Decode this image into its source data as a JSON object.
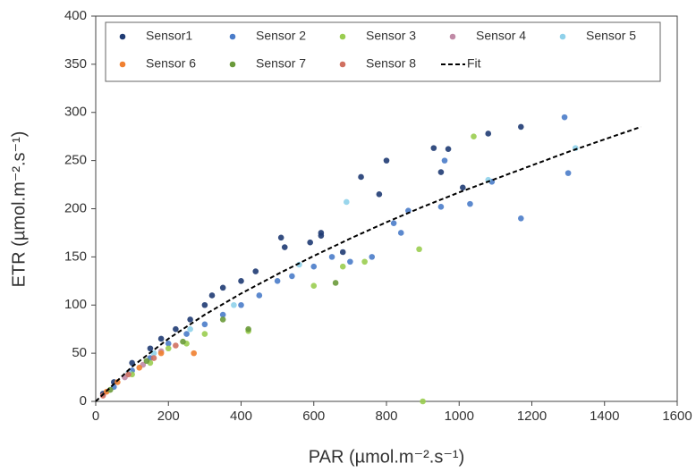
{
  "chart_data": {
    "type": "scatter",
    "x_label": "PAR (µmol.m⁻².s⁻¹)",
    "y_label": "ETR (µmol.m⁻².s⁻¹)",
    "xlim": [
      0,
      1600
    ],
    "xticks": [
      0,
      200,
      400,
      600,
      800,
      1000,
      1200,
      1400,
      1600
    ],
    "ylim": [
      0,
      400
    ],
    "yticks": [
      0,
      50,
      100,
      150,
      200,
      250,
      300,
      350,
      400
    ],
    "grid": false,
    "legend": "top",
    "series": [
      {
        "name": "Sensor1",
        "type": "scatter",
        "color": "#1f3b73",
        "x": [
          1080,
          1170,
          970,
          950,
          930,
          800,
          780,
          730,
          620,
          620,
          510,
          520,
          590,
          680,
          1010,
          440,
          400,
          350,
          320,
          300,
          260,
          220,
          180,
          150,
          100,
          50,
          20
        ],
        "y": [
          278,
          285,
          262,
          238,
          263,
          250,
          215,
          233,
          172,
          175,
          170,
          160,
          165,
          155,
          222,
          135,
          125,
          118,
          110,
          100,
          85,
          75,
          65,
          55,
          40,
          20,
          8
        ]
      },
      {
        "name": "Sensor 2",
        "type": "scatter",
        "color": "#4a7cc9",
        "x": [
          1290,
          1300,
          1170,
          1090,
          1030,
          960,
          950,
          860,
          840,
          820,
          760,
          700,
          650,
          600,
          540,
          500,
          450,
          400,
          350,
          300,
          250,
          200,
          150,
          100,
          50
        ],
        "y": [
          295,
          237,
          190,
          228,
          205,
          250,
          202,
          198,
          175,
          185,
          150,
          145,
          150,
          140,
          130,
          125,
          110,
          100,
          90,
          80,
          70,
          60,
          45,
          32,
          15
        ]
      },
      {
        "name": "Sensor 3",
        "type": "scatter",
        "color": "#9acd50",
        "x": [
          1040,
          890,
          900,
          740,
          680,
          600,
          420,
          300,
          250,
          200,
          150,
          100
        ],
        "y": [
          275,
          158,
          0,
          145,
          140,
          120,
          73,
          70,
          60,
          55,
          40,
          28
        ]
      },
      {
        "name": "Sensor 4",
        "type": "scatter",
        "color": "#c08aa6",
        "x": [
          80,
          130,
          180
        ],
        "y": [
          25,
          38,
          52
        ]
      },
      {
        "name": "Sensor 5",
        "type": "scatter",
        "color": "#8fd1ea",
        "x": [
          690,
          1320,
          1080,
          560,
          380,
          260,
          160,
          90
        ],
        "y": [
          207,
          263,
          230,
          142,
          100,
          75,
          50,
          30
        ]
      },
      {
        "name": "Sensor 6",
        "type": "scatter",
        "color": "#f08030",
        "x": [
          270,
          180,
          120,
          60,
          30
        ],
        "y": [
          50,
          50,
          35,
          20,
          10
        ]
      },
      {
        "name": "Sensor 7",
        "type": "scatter",
        "color": "#6a9a3a",
        "x": [
          660,
          420,
          350,
          240,
          140,
          40
        ],
        "y": [
          123,
          75,
          85,
          62,
          42,
          12
        ]
      },
      {
        "name": "Sensor 8",
        "type": "scatter",
        "color": "#d07060",
        "x": [
          220,
          160,
          90,
          20
        ],
        "y": [
          58,
          45,
          28,
          6
        ]
      },
      {
        "name": "Fit",
        "type": "line",
        "color": "#000000",
        "x": [
          0,
          100,
          200,
          300,
          400,
          500,
          600,
          700,
          800,
          900,
          1000,
          1100,
          1200,
          1300,
          1400,
          1500
        ],
        "y": [
          0,
          36,
          65,
          90,
          112,
          132,
          151,
          169,
          186,
          202,
          217,
          231,
          245,
          259,
          272,
          285
        ]
      }
    ]
  }
}
